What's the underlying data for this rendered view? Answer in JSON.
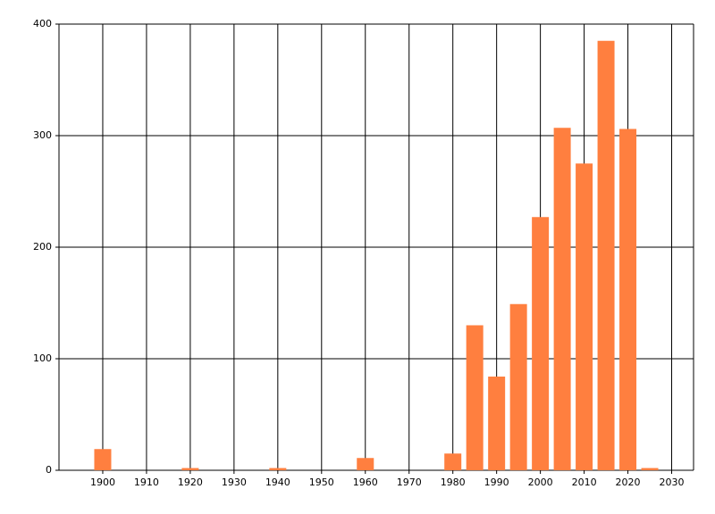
{
  "chart_data": {
    "type": "bar",
    "x": [
      1900,
      1920,
      1940,
      1960,
      1980,
      1985,
      1990,
      1995,
      2000,
      2005,
      2010,
      2015,
      2020,
      2025
    ],
    "values": [
      19,
      2,
      2,
      11,
      15,
      130,
      84,
      149,
      227,
      307,
      275,
      385,
      306,
      2
    ],
    "color": "#ff7f3f",
    "xlim": [
      1890,
      2035
    ],
    "xticks": [
      1900,
      1910,
      1920,
      1930,
      1940,
      1950,
      1960,
      1970,
      1980,
      1990,
      2000,
      2010,
      2020,
      2030
    ],
    "ylim": [
      0,
      400
    ],
    "yticks": [
      0,
      100,
      200,
      300,
      400
    ],
    "grid": true
  }
}
